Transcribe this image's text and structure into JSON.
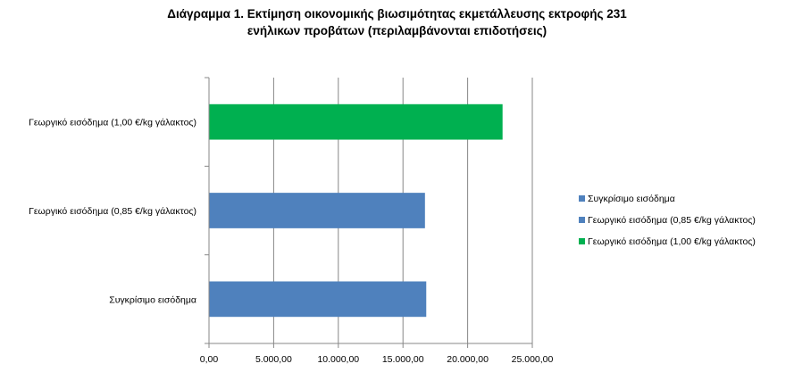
{
  "chart_data": {
    "type": "bar",
    "orientation": "horizontal",
    "title": "Διάγραμμα 1. Εκτίμηση οικονομικής βιωσιμότητας εκμετάλλευσης εκτροφής 231 ενήλικων προβάτων (περιλαμβάνονται επιδοτήσεις)",
    "title_lines": [
      "Διάγραμμα 1. Εκτίμηση οικονομικής βιωσιμότητας εκμετάλλευσης εκτροφής 231",
      "ενήλικων προβάτων (περιλαμβάνονται επιδοτήσεις)"
    ],
    "categories": [
      "Συγκρίσιμο εισόδημα",
      "Γεωργικό εισόδημα (0,85 €/kg γάλακτος)",
      "Γεωργικό εισόδημα (1,00 €/kg γάλακτος)"
    ],
    "values": [
      16800,
      16700,
      22700
    ],
    "colors": [
      "#4f81bd",
      "#4f81bd",
      "#00b050"
    ],
    "xlim": [
      0,
      25000
    ],
    "xticks": [
      0,
      5000,
      10000,
      15000,
      20000,
      25000
    ],
    "xtick_labels": [
      "0,00",
      "5.000,00",
      "10.000,00",
      "15.000,00",
      "20.000,00",
      "25.000,00"
    ],
    "grid": true,
    "legend_position": "right",
    "legend": [
      {
        "label": "Συγκρίσιμο εισόδημα",
        "color": "#4f81bd"
      },
      {
        "label": "Γεωργικό εισόδημα (0,85 €/kg γάλακτος)",
        "color": "#4f81bd"
      },
      {
        "label": "Γεωργικό εισόδημα (1,00 €/kg γάλακτος)",
        "color": "#00b050"
      }
    ]
  }
}
